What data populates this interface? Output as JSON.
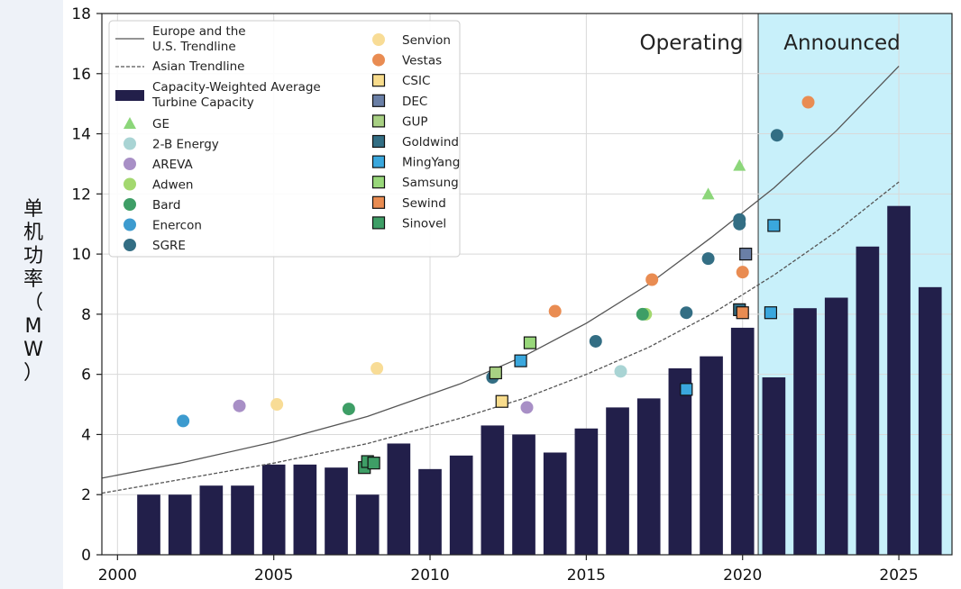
{
  "chart_data": {
    "type": "bar",
    "title": "",
    "ylabel": "单机功率（MW）",
    "xlim": [
      1999.5,
      2026.7
    ],
    "ylim": [
      0,
      18
    ],
    "xticks": [
      2000,
      2005,
      2010,
      2015,
      2020,
      2025
    ],
    "yticks": [
      0,
      2,
      4,
      6,
      8,
      10,
      12,
      14,
      16,
      18
    ],
    "regions": [
      {
        "name": "operating",
        "label": "Operating",
        "from": 1999.5,
        "to": 2020.5,
        "color": "#ffffff"
      },
      {
        "name": "announced",
        "label": "Announced",
        "from": 2020.5,
        "to": 2026.7,
        "color": "#c8f0fa"
      }
    ],
    "bars": {
      "name": "Capacity-Weighted Average Turbine Capacity",
      "color": "#221f4a",
      "x": [
        2001,
        2002,
        2003,
        2004,
        2005,
        2006,
        2007,
        2008,
        2009,
        2010,
        2011,
        2012,
        2013,
        2014,
        2015,
        2016,
        2017,
        2018,
        2019,
        2020,
        2021,
        2022,
        2023,
        2024,
        2025,
        2026
      ],
      "values": [
        2.0,
        2.0,
        2.3,
        2.3,
        3.0,
        3.0,
        2.9,
        2.0,
        3.7,
        2.85,
        3.3,
        4.3,
        4.0,
        3.4,
        4.2,
        4.9,
        5.2,
        6.2,
        6.6,
        7.55,
        5.9,
        8.2,
        8.55,
        10.25,
        11.6,
        8.9
      ]
    },
    "trendlines": [
      {
        "name": "Europe and the U.S. Trendline",
        "style": "solid",
        "color": "#555555",
        "x": [
          1999.5,
          2002,
          2005,
          2008,
          2011,
          2013,
          2015,
          2017,
          2019,
          2021,
          2023,
          2025
        ],
        "y": [
          2.55,
          3.05,
          3.75,
          4.6,
          5.7,
          6.6,
          7.7,
          9.0,
          10.55,
          12.2,
          14.1,
          16.25
        ]
      },
      {
        "name": "Asian Trendline",
        "style": "dashed",
        "color": "#555555",
        "x": [
          1999.5,
          2002,
          2005,
          2008,
          2011,
          2013,
          2015,
          2017,
          2019,
          2021,
          2023,
          2025
        ],
        "y": [
          2.05,
          2.5,
          3.05,
          3.7,
          4.55,
          5.2,
          6.0,
          6.9,
          8.0,
          9.3,
          10.75,
          12.4
        ]
      }
    ],
    "series": [
      {
        "name": "GE",
        "marker": "triangle",
        "color": "#8cd67a",
        "points": [
          [
            2018.9,
            12.0
          ],
          [
            2019.9,
            12.95
          ]
        ]
      },
      {
        "name": "2-B Energy",
        "marker": "circle",
        "color": "#a9d4d4",
        "points": [
          [
            2016.1,
            6.1
          ]
        ]
      },
      {
        "name": "AREVA",
        "marker": "circle",
        "color": "#a88fc6",
        "points": [
          [
            2003.9,
            4.95
          ],
          [
            2013.1,
            4.9
          ]
        ]
      },
      {
        "name": "Adwen",
        "marker": "circle",
        "color": "#a3d86f",
        "points": [
          [
            2016.9,
            8.0
          ]
        ]
      },
      {
        "name": "Bard",
        "marker": "circle",
        "color": "#3e9e66",
        "points": [
          [
            2007.4,
            4.85
          ],
          [
            2016.8,
            8.0
          ]
        ]
      },
      {
        "name": "Enercon",
        "marker": "circle",
        "color": "#3d9bcf",
        "points": [
          [
            2002.1,
            4.45
          ]
        ]
      },
      {
        "name": "SGRE",
        "marker": "circle",
        "color": "#336e84",
        "points": [
          [
            2012.0,
            5.9
          ],
          [
            2015.3,
            7.1
          ],
          [
            2018.2,
            8.05
          ],
          [
            2018.9,
            9.85
          ],
          [
            2019.9,
            11.15
          ],
          [
            2019.9,
            11.0
          ],
          [
            2021.1,
            13.95
          ]
        ]
      },
      {
        "name": "Senvion",
        "marker": "circle",
        "color": "#f8dc96",
        "points": [
          [
            2005.1,
            5.0
          ],
          [
            2008.3,
            6.2
          ]
        ]
      },
      {
        "name": "Vestas",
        "marker": "circle",
        "color": "#e98c52",
        "points": [
          [
            2014.0,
            8.1
          ],
          [
            2017.1,
            9.15
          ],
          [
            2020.0,
            9.4
          ],
          [
            2022.1,
            15.05
          ]
        ]
      },
      {
        "name": "CSIC",
        "marker": "square",
        "color": "#f8dc8c",
        "points": [
          [
            2012.3,
            5.1
          ]
        ]
      },
      {
        "name": "DEC",
        "marker": "square",
        "color": "#6a7fa6",
        "points": [
          [
            2020.1,
            10.0
          ]
        ]
      },
      {
        "name": "GUP",
        "marker": "square",
        "color": "#a8d083",
        "points": [
          [
            2012.1,
            6.05
          ]
        ]
      },
      {
        "name": "Goldwind",
        "marker": "square",
        "color": "#336e84",
        "points": [
          [
            2019.9,
            8.15
          ]
        ]
      },
      {
        "name": "MingYang",
        "marker": "square",
        "color": "#3aa7dd",
        "points": [
          [
            2012.9,
            6.45
          ],
          [
            2018.2,
            5.5
          ],
          [
            2020.9,
            8.05
          ],
          [
            2021.0,
            10.95
          ]
        ]
      },
      {
        "name": "Samsung",
        "marker": "square",
        "color": "#98d77a",
        "points": [
          [
            2013.2,
            7.05
          ]
        ]
      },
      {
        "name": "Sewind",
        "marker": "square",
        "color": "#e98c52",
        "points": [
          [
            2020.0,
            8.05
          ]
        ]
      },
      {
        "name": "Sinovel",
        "marker": "square",
        "color": "#3e9e66",
        "points": [
          [
            2007.9,
            2.9
          ],
          [
            2008.0,
            3.1
          ],
          [
            2008.2,
            3.05
          ]
        ]
      }
    ],
    "legend": {
      "placement": "top-left",
      "left_column": [
        "Europe and the U.S. Trendline",
        "Asian Trendline",
        "Capacity-Weighted Average Turbine Capacity",
        "GE",
        "2-B Energy",
        "AREVA",
        "Adwen",
        "Bard",
        "Enercon",
        "SGRE"
      ],
      "right_column": [
        "Senvion",
        "Vestas",
        "CSIC",
        "DEC",
        "GUP",
        "Goldwind",
        "MingYang",
        "Samsung",
        "Sewind",
        "Sinovel"
      ]
    },
    "grid": true
  },
  "legend_labels": {
    "europe_line1": "Europe and the",
    "europe_line2": "U.S. Trendline",
    "asian": "Asian Trendline",
    "bars_line1": "Capacity-Weighted Average",
    "bars_line2": "Turbine Capacity"
  },
  "ylabel_chars": [
    "单",
    "机",
    "功",
    "率",
    "（",
    "M",
    "W",
    "）"
  ]
}
